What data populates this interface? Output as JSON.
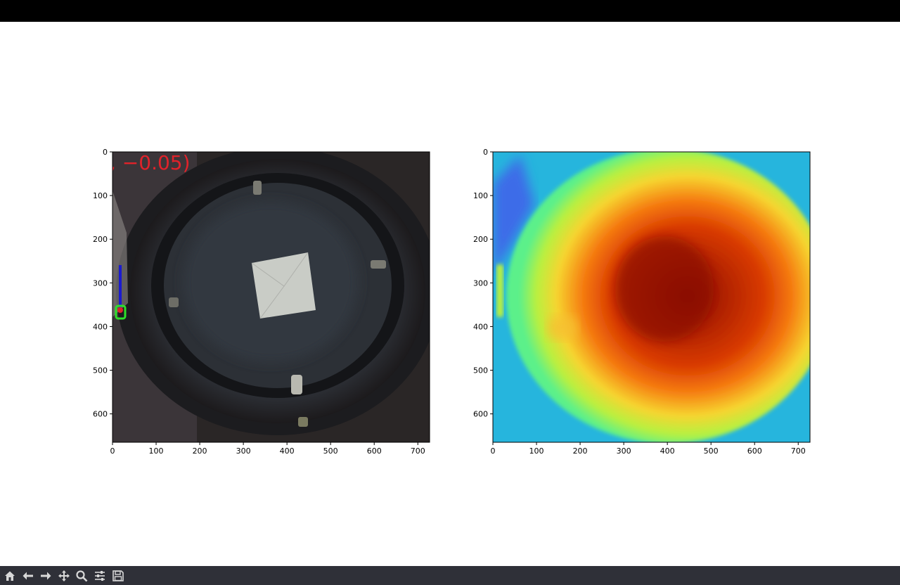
{
  "window": {
    "title": ""
  },
  "overlay_text": ", −0.05)",
  "colors": {
    "toolbar_bg": "#2f3038",
    "icon": "#d8d8d8",
    "overlay_red": "#e0222a",
    "arrow_blue": "#1a1ad0"
  },
  "toolbar": {
    "buttons": [
      {
        "name": "home-button",
        "icon": "home-icon"
      },
      {
        "name": "back-button",
        "icon": "arrow-left-icon"
      },
      {
        "name": "forward-button",
        "icon": "arrow-right-icon"
      },
      {
        "name": "pan-button",
        "icon": "move-icon"
      },
      {
        "name": "zoom-button",
        "icon": "magnifier-icon"
      },
      {
        "name": "configure-subplots-button",
        "icon": "sliders-icon"
      },
      {
        "name": "save-button",
        "icon": "floppy-icon"
      }
    ]
  },
  "chart_data": [
    {
      "type": "image",
      "title": "",
      "xlim": [
        0,
        727
      ],
      "ylim": [
        665,
        0
      ],
      "xticks": [
        "0",
        "100",
        "200",
        "300",
        "400",
        "500",
        "600",
        "700"
      ],
      "yticks": [
        "0",
        "100",
        "200",
        "300",
        "400",
        "500",
        "600"
      ]
    },
    {
      "type": "heatmap",
      "title": "",
      "colormap": "jet",
      "xlim": [
        0,
        727
      ],
      "ylim": [
        665,
        0
      ],
      "xticks": [
        "0",
        "100",
        "200",
        "300",
        "400",
        "500",
        "600",
        "700"
      ],
      "yticks": [
        "0",
        "100",
        "200",
        "300",
        "400",
        "500",
        "600"
      ]
    }
  ]
}
